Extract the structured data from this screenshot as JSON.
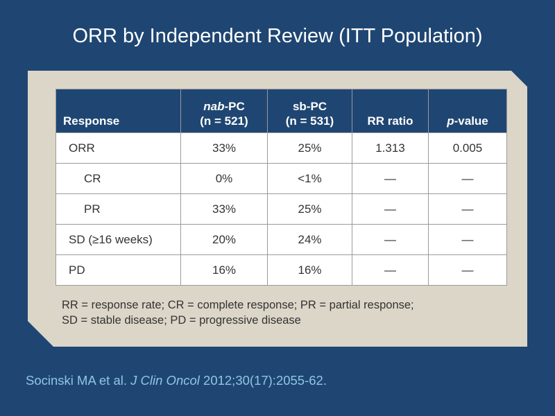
{
  "slide": {
    "title": "ORR by Independent Review (ITT Population)"
  },
  "table": {
    "headers": {
      "response": "Response",
      "nab_pc_italic": "nab",
      "nab_pc_rest": "-PC",
      "nab_pc_n": "(n = 521)",
      "sb_pc": "sb-PC",
      "sb_pc_n": "(n = 531)",
      "rr_ratio": "RR ratio",
      "p_value_italic": "p",
      "p_value_rest": "-value"
    },
    "rows": [
      {
        "label": "ORR",
        "nab_pc": "33%",
        "sb_pc": "25%",
        "rr_ratio": "1.313",
        "p_value": "0.005"
      },
      {
        "label": "CR",
        "nab_pc": "0%",
        "sb_pc": "<1%",
        "rr_ratio": "—",
        "p_value": "—"
      },
      {
        "label": "PR",
        "nab_pc": "33%",
        "sb_pc": "25%",
        "rr_ratio": "—",
        "p_value": "—"
      },
      {
        "label": "SD (≥16 weeks)",
        "nab_pc": "20%",
        "sb_pc": "24%",
        "rr_ratio": "—",
        "p_value": "—"
      },
      {
        "label": "PD",
        "nab_pc": "16%",
        "sb_pc": "16%",
        "rr_ratio": "—",
        "p_value": "—"
      }
    ]
  },
  "footnote": {
    "line1": "RR = response rate; CR = complete response; PR = partial response;",
    "line2": "SD = stable disease; PD = progressive disease"
  },
  "citation": {
    "authors": "Socinski MA et al.",
    "journal": "J Clin Oncol",
    "details": "2012;30(17):2055-62."
  }
}
